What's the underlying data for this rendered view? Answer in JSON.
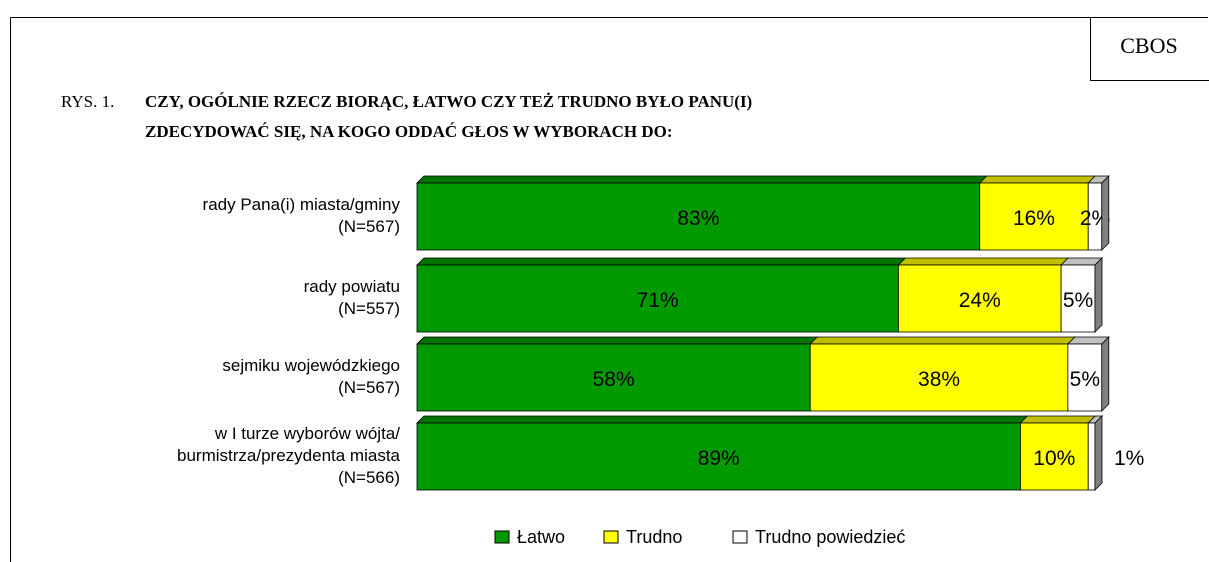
{
  "chart_data": {
    "type": "stacked_barh",
    "badge": "CBOS",
    "title_prefix": "RYS. 1.",
    "title": [
      "CZY, OGÓLNIE RZECZ BIORĄC, ŁATWO CZY TEŻ TRUDNO BYŁO PANU(I)",
      "ZDECYDOWAĆ SIĘ, NA KOGO ODDAĆ GŁOS W WYBORACH DO:"
    ],
    "categories": [
      [
        "rady Pana(i) miasta/gminy",
        "(N=567)"
      ],
      [
        "rady powiatu",
        "(N=557)"
      ],
      [
        "sejmiku wojewódzkiego",
        "(N=567)"
      ],
      [
        "w I turze wyborów wójta/",
        "burmistrza/prezydenta miasta",
        "(N=566)"
      ]
    ],
    "xlim": [
      0,
      100
    ],
    "series": [
      {
        "name": "Łatwo",
        "color": "#009900",
        "values": [
          83,
          71,
          58,
          89
        ],
        "value_labels": [
          "83%",
          "71%",
          "58%",
          "89%"
        ]
      },
      {
        "name": "Trudno",
        "color": "#ffff00",
        "values": [
          16,
          24,
          38,
          10
        ],
        "value_labels": [
          "16%",
          "24%",
          "38%",
          "10%"
        ]
      },
      {
        "name": "Trudno powiedzieć",
        "color": "#ffffff",
        "values": [
          2,
          5,
          5,
          1
        ],
        "value_labels": [
          "2%",
          "5%",
          "5%",
          "1%"
        ]
      }
    ]
  }
}
